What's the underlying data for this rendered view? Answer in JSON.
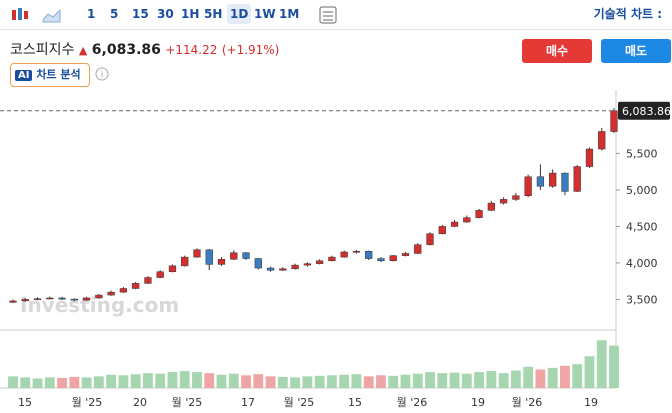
{
  "toolbar": {
    "intervals": [
      "1",
      "5",
      "15",
      "30",
      "1H",
      "5H",
      "1D",
      "1W",
      "1M"
    ],
    "active_interval": 6,
    "chart_menu": "기술적 차트 :"
  },
  "header": {
    "name": "코스피지수",
    "price": "6,083.86",
    "change": "+114.22",
    "change_pct": "(+1.91%)",
    "buy": "매수",
    "sell": "매도",
    "ai_badge": "AI",
    "ai_label": "차트 분석"
  },
  "chart_data": {
    "type": "candlestick",
    "watermark": "Investing.com",
    "x_labels": [
      "15",
      "월 '25",
      "20",
      "월 '25",
      "17",
      "월 '25",
      "15",
      "월 '26",
      "19",
      "월 '26",
      "19"
    ],
    "open": [
      3460,
      3480,
      3500,
      3510,
      3520,
      3505,
      3490,
      3520,
      3560,
      3600,
      3650,
      3720,
      3800,
      3880,
      3960,
      4080,
      4180,
      3980,
      4050,
      4140,
      4060,
      3930,
      3900,
      3920,
      3970,
      3990,
      4030,
      4080,
      4150,
      4160,
      4060,
      4030,
      4100,
      4130,
      4250,
      4400,
      4500,
      4560,
      4620,
      4720,
      4820,
      4870,
      4920,
      5180,
      5050,
      5230,
      4980,
      5320,
      5560,
      5800
    ],
    "high": [
      3500,
      3520,
      3530,
      3540,
      3535,
      3515,
      3535,
      3575,
      3620,
      3670,
      3740,
      3820,
      3900,
      3980,
      4100,
      4200,
      4190,
      4080,
      4170,
      4150,
      4070,
      3950,
      3940,
      3990,
      4010,
      4050,
      4100,
      4170,
      4180,
      4170,
      4080,
      4110,
      4150,
      4270,
      4420,
      4520,
      4590,
      4650,
      4740,
      4850,
      4900,
      4960,
      5210,
      5350,
      5280,
      5240,
      5340,
      5580,
      5850,
      6120
    ],
    "low": [
      3450,
      3470,
      3490,
      3500,
      3490,
      3475,
      3480,
      3510,
      3550,
      3590,
      3640,
      3710,
      3790,
      3870,
      3950,
      4070,
      3900,
      3960,
      4040,
      4040,
      3910,
      3880,
      3890,
      3910,
      3950,
      3980,
      4020,
      4070,
      4130,
      4040,
      4010,
      4020,
      4090,
      4120,
      4240,
      4390,
      4490,
      4550,
      4610,
      4710,
      4800,
      4850,
      4900,
      5000,
      5030,
      4930,
      4970,
      5300,
      5540,
      5780
    ],
    "close": [
      3480,
      3500,
      3510,
      3520,
      3505,
      3490,
      3520,
      3560,
      3600,
      3650,
      3720,
      3800,
      3880,
      3960,
      4080,
      4180,
      3980,
      4050,
      4140,
      4060,
      3930,
      3900,
      3920,
      3970,
      3990,
      4030,
      4080,
      4150,
      4160,
      4060,
      4030,
      4100,
      4130,
      4250,
      4400,
      4500,
      4560,
      4620,
      4720,
      4820,
      4870,
      4920,
      5180,
      5050,
      5230,
      4980,
      5320,
      5560,
      5800,
      6083.86
    ],
    "volume": [
      22,
      20,
      18,
      20,
      19,
      21,
      20,
      22,
      25,
      24,
      26,
      28,
      27,
      30,
      32,
      30,
      28,
      25,
      27,
      24,
      26,
      22,
      21,
      20,
      22,
      23,
      24,
      25,
      26,
      22,
      24,
      23,
      25,
      27,
      30,
      28,
      29,
      27,
      30,
      32,
      28,
      33,
      40,
      35,
      38,
      42,
      45,
      60,
      90,
      80
    ],
    "volume_lim": [
      0,
      100
    ],
    "last_price": {
      "value": 6083.86,
      "label": "6,083.86"
    },
    "ylim": [
      3150,
      6300
    ],
    "yticks": [
      {
        "value": 3500,
        "label": "3,500"
      },
      {
        "value": 4000,
        "label": "4,000"
      },
      {
        "value": 4500,
        "label": "4,500"
      },
      {
        "value": 5000,
        "label": "5,000"
      },
      {
        "value": 5500,
        "label": "5,500"
      }
    ],
    "up_color": "#d32f2f",
    "down_color": "#3b7bbf",
    "volume_up_color": "#a5d6b0",
    "volume_down_color": "#f0a5a5"
  }
}
